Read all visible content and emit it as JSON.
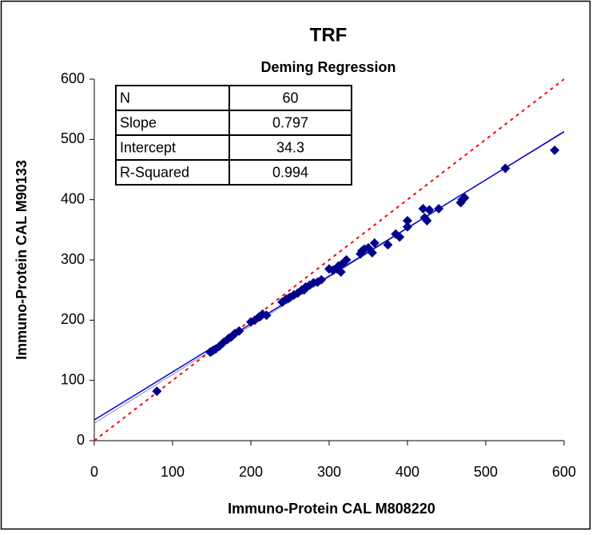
{
  "chart_data": {
    "type": "scatter",
    "title": "TRF",
    "subtitle": "Deming Regression",
    "xlabel": "Immuno-Protein CAL M808220",
    "ylabel": "Immuno-Protein CAL M90133",
    "xlim": [
      0,
      600
    ],
    "ylim": [
      0,
      600
    ],
    "xticks": [
      0,
      100,
      200,
      300,
      400,
      500,
      600
    ],
    "yticks": [
      0,
      100,
      200,
      300,
      400,
      500,
      600
    ],
    "color": "#00008b",
    "fit_color": "#0000cc",
    "identity_color": "#ff0000",
    "stats_table": {
      "rows": [
        [
          "N",
          60
        ],
        [
          "Slope",
          0.797
        ],
        [
          "Intercept",
          34.3
        ],
        [
          "R-Squared",
          0.994
        ]
      ]
    },
    "x": [
      80,
      148,
      152,
      155,
      160,
      165,
      170,
      175,
      180,
      185,
      200,
      205,
      210,
      215,
      220,
      240,
      245,
      250,
      255,
      260,
      265,
      270,
      275,
      280,
      285,
      290,
      305,
      310,
      315,
      318,
      322,
      340,
      345,
      350,
      355,
      358,
      375,
      385,
      390,
      400,
      400,
      420,
      425,
      428,
      440,
      468,
      470,
      473,
      525,
      588,
      150,
      172,
      212,
      248,
      268,
      300,
      312,
      342,
      422,
      178
    ],
    "values": [
      82,
      147,
      150,
      152,
      157,
      163,
      168,
      172,
      178,
      182,
      197,
      200,
      205,
      210,
      208,
      230,
      235,
      238,
      242,
      245,
      250,
      255,
      258,
      262,
      263,
      267,
      283,
      285,
      280,
      295,
      300,
      310,
      318,
      320,
      312,
      328,
      325,
      343,
      338,
      355,
      365,
      385,
      365,
      383,
      385,
      395,
      400,
      403,
      452,
      482,
      148,
      170,
      206,
      236,
      250,
      285,
      290,
      315,
      370,
      176
    ]
  }
}
